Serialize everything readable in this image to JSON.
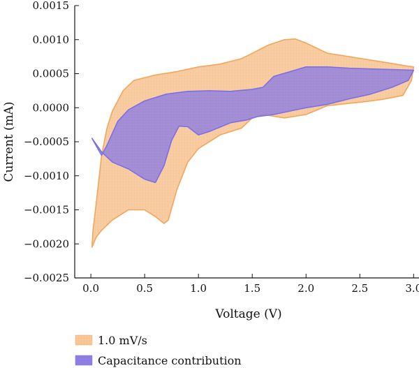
{
  "chart_data": {
    "type": "area",
    "xlabel": "Voltage (V)",
    "ylabel": "Current (mA)",
    "xlim": [
      -0.15,
      3.05
    ],
    "ylim": [
      -0.0025,
      0.0015
    ],
    "x_ticks": [
      0.0,
      0.5,
      1.0,
      1.5,
      2.0,
      2.5,
      3.0
    ],
    "x_tick_labels": [
      "0.0",
      "0.5",
      "1.0",
      "1.5",
      "2.0",
      "2.5",
      "3.0"
    ],
    "y_ticks": [
      0.0015,
      0.001,
      0.0005,
      0.0,
      -0.0005,
      -0.001,
      -0.0015,
      -0.002,
      -0.0025
    ],
    "y_tick_labels": [
      "0.0015",
      "0.0010",
      "0.0005",
      "0.0000",
      "−0.0005",
      "−0.0010",
      "−0.0015",
      "−0.0020",
      "−0.0025"
    ],
    "grid": false,
    "legend_position": "bottom-left",
    "series": [
      {
        "name": "1.0 mV/s",
        "fill_color": "#f7c89a",
        "stroke_color": "#f2a65a",
        "points": [
          [
            0.01,
            -0.00205
          ],
          [
            0.02,
            -0.0018
          ],
          [
            0.05,
            -0.0014
          ],
          [
            0.1,
            -0.0007
          ],
          [
            0.15,
            -0.0003
          ],
          [
            0.2,
            -5e-05
          ],
          [
            0.3,
            0.00025
          ],
          [
            0.4,
            0.0004
          ],
          [
            0.6,
            0.00048
          ],
          [
            0.8,
            0.00053
          ],
          [
            1.0,
            0.0006
          ],
          [
            1.2,
            0.00064
          ],
          [
            1.4,
            0.00072
          ],
          [
            1.5,
            0.0008
          ],
          [
            1.65,
            0.00092
          ],
          [
            1.8,
            0.001
          ],
          [
            1.9,
            0.00101
          ],
          [
            2.0,
            0.00095
          ],
          [
            2.2,
            0.0008
          ],
          [
            2.4,
            0.00075
          ],
          [
            2.6,
            0.0007
          ],
          [
            2.8,
            0.00065
          ],
          [
            2.95,
            0.00061
          ],
          [
            3.0,
            0.0006
          ],
          [
            2.98,
            0.0004
          ],
          [
            2.9,
            0.00018
          ],
          [
            2.7,
            0.00012
          ],
          [
            2.5,
            8e-05
          ],
          [
            2.2,
            3e-05
          ],
          [
            2.0,
            -0.0001
          ],
          [
            1.8,
            -0.00015
          ],
          [
            1.6,
            -0.0001
          ],
          [
            1.5,
            -0.00015
          ],
          [
            1.4,
            -0.0003
          ],
          [
            1.2,
            -0.0004
          ],
          [
            1.0,
            -0.0006
          ],
          [
            0.9,
            -0.0008
          ],
          [
            0.8,
            -0.0012
          ],
          [
            0.72,
            -0.00165
          ],
          [
            0.68,
            -0.0017
          ],
          [
            0.6,
            -0.0016
          ],
          [
            0.5,
            -0.0015
          ],
          [
            0.35,
            -0.0015
          ],
          [
            0.2,
            -0.00165
          ],
          [
            0.1,
            -0.0018
          ],
          [
            0.05,
            -0.0019
          ],
          [
            0.01,
            -0.00205
          ]
        ]
      },
      {
        "name": "Capacitance contribution",
        "fill_color": "#8f7fe3",
        "stroke_color": "#7b6fe6",
        "points": [
          [
            0.01,
            -0.00045
          ],
          [
            0.1,
            -0.0007
          ],
          [
            0.15,
            -0.00055
          ],
          [
            0.25,
            -0.0002
          ],
          [
            0.35,
            -3e-05
          ],
          [
            0.5,
            0.0001
          ],
          [
            0.7,
            0.0002
          ],
          [
            0.9,
            0.00024
          ],
          [
            1.1,
            0.00025
          ],
          [
            1.3,
            0.00024
          ],
          [
            1.5,
            0.00027
          ],
          [
            1.6,
            0.0003
          ],
          [
            1.7,
            0.00046
          ],
          [
            1.85,
            0.00053
          ],
          [
            2.0,
            0.0006
          ],
          [
            2.2,
            0.0006
          ],
          [
            2.4,
            0.00058
          ],
          [
            2.6,
            0.00057
          ],
          [
            2.8,
            0.00056
          ],
          [
            3.0,
            0.00055
          ],
          [
            2.95,
            0.0004
          ],
          [
            2.8,
            0.0003
          ],
          [
            2.6,
            0.0002
          ],
          [
            2.4,
            0.00013
          ],
          [
            2.2,
            5e-05
          ],
          [
            2.0,
            0.0
          ],
          [
            1.85,
            -5e-05
          ],
          [
            1.7,
            -0.0001
          ],
          [
            1.55,
            -0.00013
          ],
          [
            1.45,
            -0.00018
          ],
          [
            1.3,
            -0.00022
          ],
          [
            1.1,
            -0.00035
          ],
          [
            1.0,
            -0.0004
          ],
          [
            0.9,
            -0.00028
          ],
          [
            0.82,
            -0.00027
          ],
          [
            0.75,
            -0.00048
          ],
          [
            0.68,
            -0.00085
          ],
          [
            0.6,
            -0.0011
          ],
          [
            0.5,
            -0.00105
          ],
          [
            0.35,
            -0.0009
          ],
          [
            0.2,
            -0.0008
          ],
          [
            0.1,
            -0.00065
          ],
          [
            0.01,
            -0.00045
          ]
        ]
      }
    ]
  }
}
